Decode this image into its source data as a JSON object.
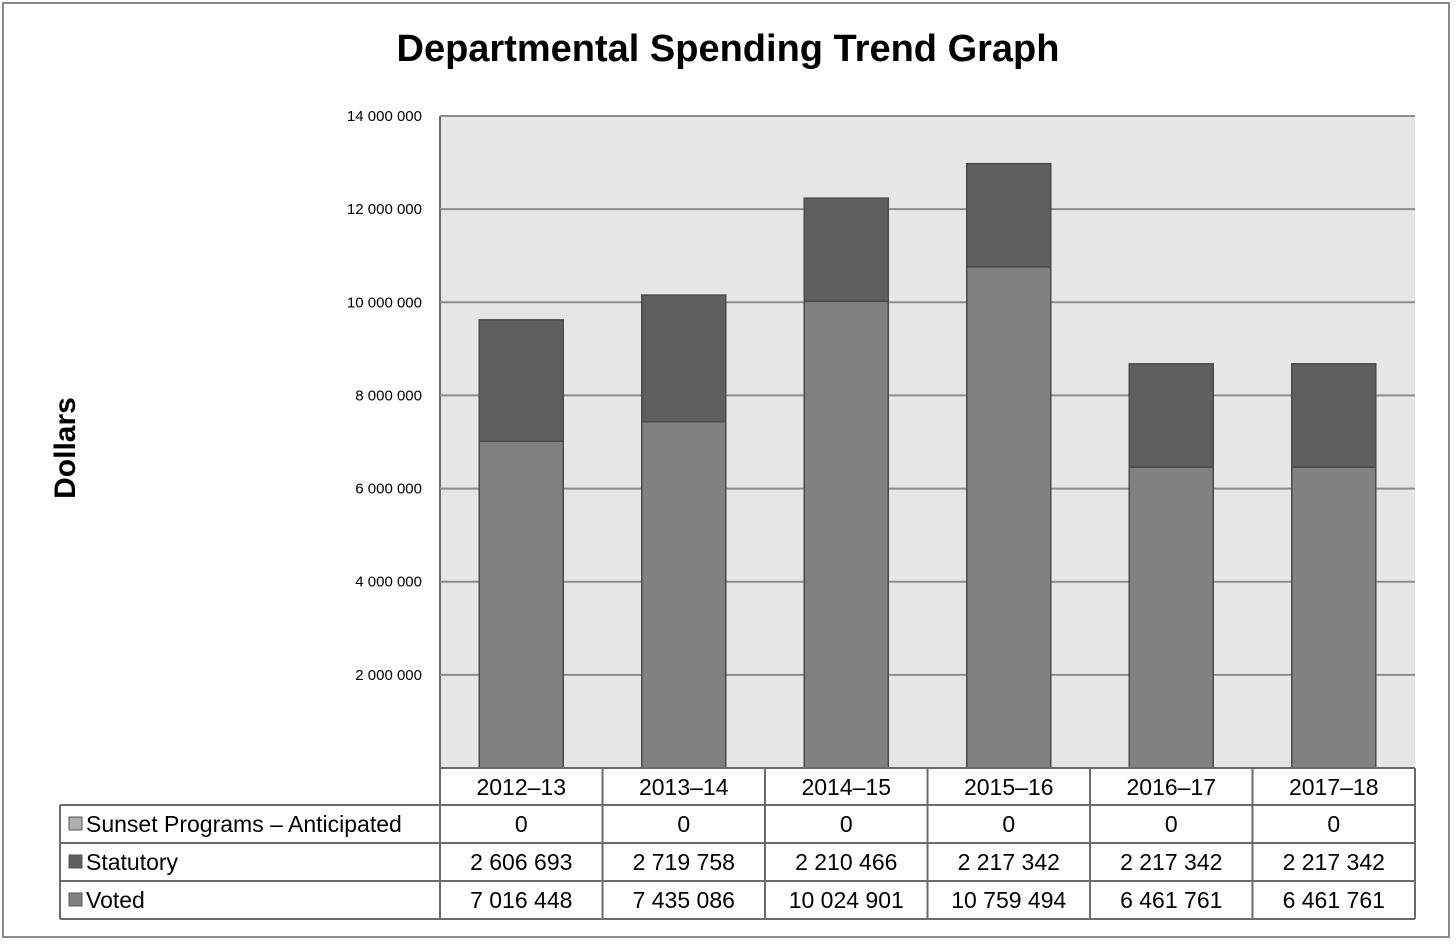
{
  "chart_data": {
    "type": "bar",
    "stacked": true,
    "title": "Departmental Spending Trend Graph",
    "ylabel": "Dollars",
    "ylim": [
      0,
      14000000
    ],
    "yticks": [
      "2 000 000",
      "4 000 000",
      "6 000 000",
      "8 000 000",
      "10 000 000",
      "12 000 000",
      "14 000 000"
    ],
    "ytick_values": [
      2000000,
      4000000,
      6000000,
      8000000,
      10000000,
      12000000,
      14000000
    ],
    "grid": true,
    "legend": "data-table",
    "categories": [
      "2012–13",
      "2013–14",
      "2014–15",
      "2015–16",
      "2016–17",
      "2017–18"
    ],
    "series": [
      {
        "name": "Sunset Programs – Anticipated",
        "color": "#b0b0b0",
        "values": [
          0,
          0,
          0,
          0,
          0,
          0
        ],
        "labels": [
          "0",
          "0",
          "0",
          "0",
          "0",
          "0"
        ]
      },
      {
        "name": "Statutory",
        "color": "#5f5f5f",
        "values": [
          2606693,
          2719758,
          2210466,
          2217342,
          2217342,
          2217342
        ],
        "labels": [
          "2 606 693",
          "2 719 758",
          "2 210 466",
          "2 217 342",
          "2 217 342",
          "2 217 342"
        ]
      },
      {
        "name": "Voted",
        "color": "#818181",
        "values": [
          7016448,
          7435086,
          10024901,
          10759494,
          6461761,
          6461761
        ],
        "labels": [
          "7 016 448",
          "7 435 086",
          "10 024 901",
          "10 759 494",
          "6 461 761",
          "6 461 761"
        ]
      }
    ],
    "colors": {
      "plot_bg": "#e6e6e6",
      "grid": "#8c8c8c",
      "border": "#6b6b6b"
    }
  }
}
